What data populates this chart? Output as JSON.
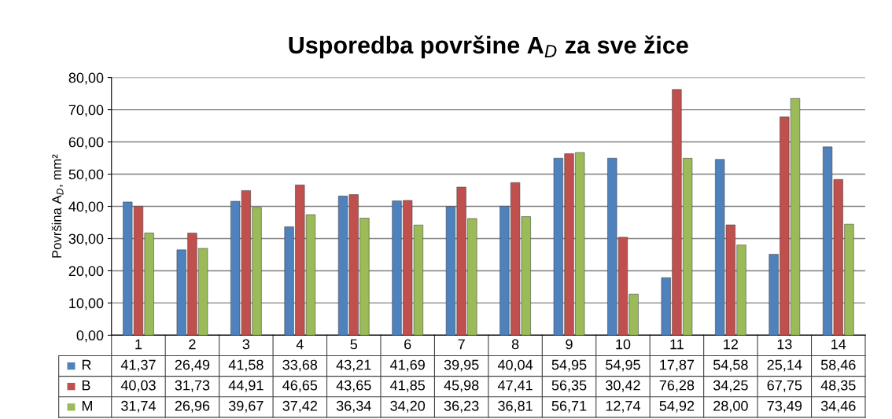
{
  "chart_data": {
    "type": "bar",
    "title": "Usporedba površine A$_{D}$ za sve žice",
    "ylabel": "Površina A$_{D}$, mm²",
    "categories": [
      "1",
      "2",
      "3",
      "4",
      "5",
      "6",
      "7",
      "8",
      "9",
      "10",
      "11",
      "12",
      "13",
      "14"
    ],
    "series": [
      {
        "name": "R",
        "color": "#4f81bd",
        "values": [
          41.37,
          26.49,
          41.58,
          33.68,
          43.21,
          41.69,
          39.95,
          40.04,
          54.95,
          54.95,
          17.87,
          54.58,
          25.14,
          58.46
        ],
        "value_labels": [
          "41,37",
          "26,49",
          "41,58",
          "33,68",
          "43,21",
          "41,69",
          "39,95",
          "40,04",
          "54,95",
          "54,95",
          "17,87",
          "54,58",
          "25,14",
          "58,46"
        ]
      },
      {
        "name": "B",
        "color": "#c0504d",
        "values": [
          40.03,
          31.73,
          44.91,
          46.65,
          43.65,
          41.85,
          45.98,
          47.41,
          56.35,
          30.42,
          76.28,
          34.25,
          67.75,
          48.35
        ],
        "value_labels": [
          "40,03",
          "31,73",
          "44,91",
          "46,65",
          "43,65",
          "41,85",
          "45,98",
          "47,41",
          "56,35",
          "30,42",
          "76,28",
          "34,25",
          "67,75",
          "48,35"
        ]
      },
      {
        "name": "M",
        "color": "#9bbb59",
        "values": [
          31.74,
          26.96,
          39.67,
          37.42,
          36.34,
          34.2,
          36.23,
          36.81,
          56.71,
          12.74,
          54.92,
          28.0,
          73.49,
          34.46
        ],
        "value_labels": [
          "31,74",
          "26,96",
          "39,67",
          "37,42",
          "36,34",
          "34,20",
          "36,23",
          "36,81",
          "56,71",
          "12,74",
          "54,92",
          "28,00",
          "73,49",
          "34,46"
        ]
      }
    ],
    "ylim": [
      0,
      80
    ],
    "yticks": [
      {
        "value": 0,
        "label": "0,00"
      },
      {
        "value": 10,
        "label": "10,00"
      },
      {
        "value": 20,
        "label": "20,00"
      },
      {
        "value": 30,
        "label": "30,00"
      },
      {
        "value": 40,
        "label": "40,00"
      },
      {
        "value": 50,
        "label": "50,00"
      },
      {
        "value": 60,
        "label": "60,00"
      },
      {
        "value": 70,
        "label": "70,00"
      },
      {
        "value": 80,
        "label": "80,00"
      }
    ],
    "grid": "y",
    "legend": "bottom"
  }
}
